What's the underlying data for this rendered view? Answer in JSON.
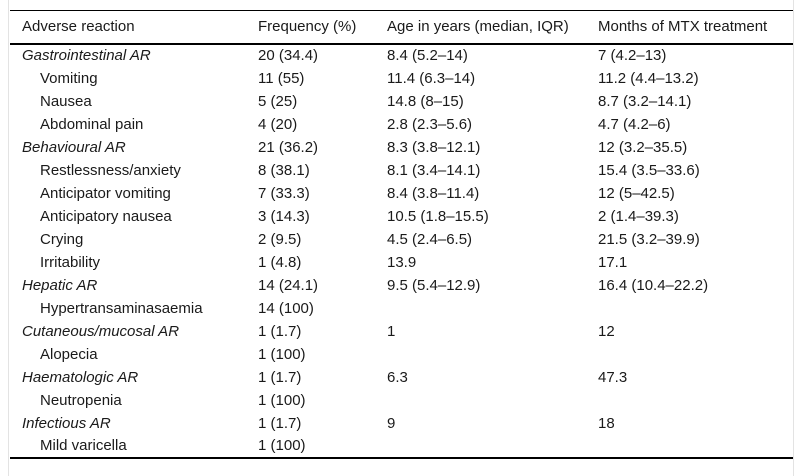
{
  "colors": {
    "text": "#1a1a1a",
    "rule": "#000000",
    "frame": "#e3e3e3",
    "background": "#ffffff"
  },
  "table": {
    "columns": [
      "Adverse reaction",
      "Frequency (%)",
      "Age in years (median, IQR)",
      "Months of MTX treatment"
    ],
    "rows": [
      {
        "category": true,
        "cells": [
          "Gastrointestinal AR",
          "20 (34.4)",
          "8.4 (5.2–14)",
          "7 (4.2–13)"
        ]
      },
      {
        "category": false,
        "cells": [
          "Vomiting",
          "11 (55)",
          "11.4 (6.3–14)",
          "11.2 (4.4–13.2)"
        ]
      },
      {
        "category": false,
        "cells": [
          "Nausea",
          "5 (25)",
          "14.8 (8–15)",
          "8.7 (3.2–14.1)"
        ]
      },
      {
        "category": false,
        "cells": [
          "Abdominal pain",
          "4 (20)",
          "2.8 (2.3–5.6)",
          "4.7 (4.2–6)"
        ]
      },
      {
        "category": true,
        "cells": [
          "Behavioural AR",
          "21 (36.2)",
          "8.3 (3.8–12.1)",
          "12 (3.2–35.5)"
        ]
      },
      {
        "category": false,
        "cells": [
          "Restlessness/anxiety",
          "8 (38.1)",
          "8.1 (3.4–14.1)",
          "15.4 (3.5–33.6)"
        ]
      },
      {
        "category": false,
        "cells": [
          "Anticipator vomiting",
          "7 (33.3)",
          "8.4 (3.8–11.4)",
          "12 (5–42.5)"
        ]
      },
      {
        "category": false,
        "cells": [
          "Anticipatory nausea",
          "3 (14.3)",
          "10.5 (1.8–15.5)",
          "2 (1.4–39.3)"
        ]
      },
      {
        "category": false,
        "cells": [
          "Crying",
          "2 (9.5)",
          "4.5 (2.4–6.5)",
          "21.5 (3.2–39.9)"
        ]
      },
      {
        "category": false,
        "cells": [
          "Irritability",
          "1 (4.8)",
          "13.9",
          "17.1"
        ]
      },
      {
        "category": true,
        "cells": [
          "Hepatic AR",
          "14 (24.1)",
          "9.5 (5.4–12.9)",
          "16.4 (10.4–22.2)"
        ]
      },
      {
        "category": false,
        "cells": [
          "Hypertransaminasaemia",
          "14 (100)",
          "",
          ""
        ]
      },
      {
        "category": true,
        "cells": [
          "Cutaneous/mucosal AR",
          "1 (1.7)",
          "1",
          "12"
        ]
      },
      {
        "category": false,
        "cells": [
          "Alopecia",
          "1 (100)",
          "",
          ""
        ]
      },
      {
        "category": true,
        "cells": [
          "Haematologic AR",
          "1 (1.7)",
          "6.3",
          "47.3"
        ]
      },
      {
        "category": false,
        "cells": [
          "Neutropenia",
          "1 (100)",
          "",
          ""
        ]
      },
      {
        "category": true,
        "cells": [
          "Infectious AR",
          "1 (1.7)",
          "9",
          "18"
        ]
      },
      {
        "category": false,
        "cells": [
          "Mild varicella",
          "1 (100)",
          "",
          ""
        ]
      }
    ]
  }
}
